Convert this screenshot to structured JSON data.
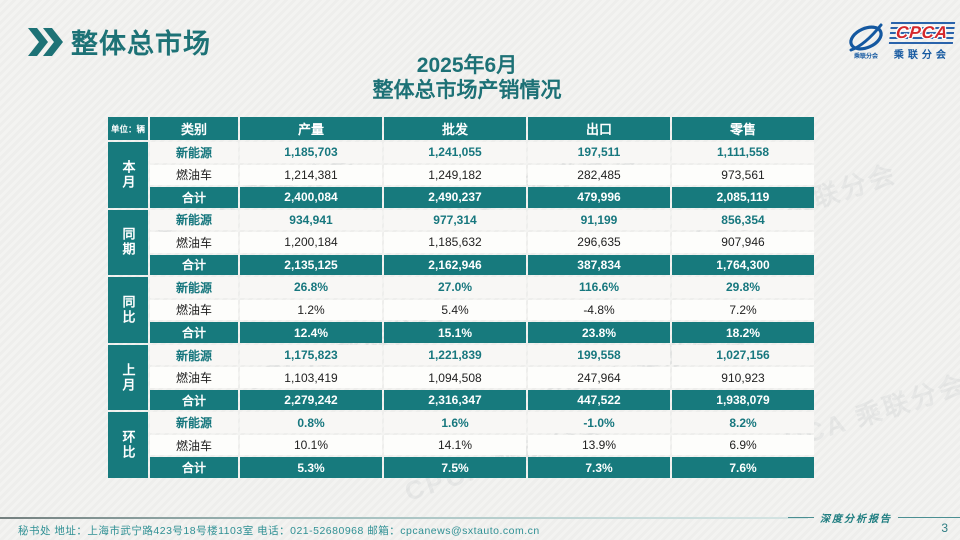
{
  "page": {
    "section_title": "整体总市场",
    "title_line1": "2025年6月",
    "title_line2": "整体总市场产销情况",
    "footer_text": "秘书处  地址：上海市武宁路423号18号楼1103室  电话：021-52680968   邮箱：cpcanews@sxtauto.com.cn",
    "report_badge": "深度分析报告",
    "page_number": "3",
    "watermark_text": "CPCA 乘联分会"
  },
  "logo": {
    "name": "CPCA",
    "subtitle": "乘联分会"
  },
  "colors": {
    "teal": "#177A7D",
    "accent_text": "#17777E",
    "title_teal": "#1D7176",
    "logo_blue": "#1458A0",
    "logo_red": "#D5282C"
  },
  "chart_data": {
    "type": "table",
    "title": "2025年6月 整体总市场产销情况",
    "unit_label": "单位：辆",
    "columns": [
      "类别",
      "产量",
      "批发",
      "出口",
      "零售"
    ],
    "row_groups": [
      {
        "label": "本月",
        "rows": [
          {
            "category": "新能源",
            "style": "accent",
            "values": [
              "1,185,703",
              "1,241,055",
              "197,511",
              "1,111,558"
            ]
          },
          {
            "category": "燃油车",
            "style": "plain",
            "values": [
              "1,214,381",
              "1,249,182",
              "282,485",
              "973,561"
            ]
          },
          {
            "category": "合计",
            "style": "total",
            "values": [
              "2,400,084",
              "2,490,237",
              "479,996",
              "2,085,119"
            ]
          }
        ]
      },
      {
        "label": "同期",
        "rows": [
          {
            "category": "新能源",
            "style": "accent",
            "values": [
              "934,941",
              "977,314",
              "91,199",
              "856,354"
            ]
          },
          {
            "category": "燃油车",
            "style": "plain",
            "values": [
              "1,200,184",
              "1,185,632",
              "296,635",
              "907,946"
            ]
          },
          {
            "category": "合计",
            "style": "total",
            "values": [
              "2,135,125",
              "2,162,946",
              "387,834",
              "1,764,300"
            ]
          }
        ]
      },
      {
        "label": "同比",
        "rows": [
          {
            "category": "新能源",
            "style": "accent",
            "values": [
              "26.8%",
              "27.0%",
              "116.6%",
              "29.8%"
            ]
          },
          {
            "category": "燃油车",
            "style": "plain",
            "values": [
              "1.2%",
              "5.4%",
              "-4.8%",
              "7.2%"
            ]
          },
          {
            "category": "合计",
            "style": "total",
            "values": [
              "12.4%",
              "15.1%",
              "23.8%",
              "18.2%"
            ]
          }
        ]
      },
      {
        "label": "上月",
        "rows": [
          {
            "category": "新能源",
            "style": "accent",
            "values": [
              "1,175,823",
              "1,221,839",
              "199,558",
              "1,027,156"
            ]
          },
          {
            "category": "燃油车",
            "style": "plain",
            "values": [
              "1,103,419",
              "1,094,508",
              "247,964",
              "910,923"
            ]
          },
          {
            "category": "合计",
            "style": "total",
            "values": [
              "2,279,242",
              "2,316,347",
              "447,522",
              "1,938,079"
            ]
          }
        ]
      },
      {
        "label": "环比",
        "rows": [
          {
            "category": "新能源",
            "style": "accent",
            "values": [
              "0.8%",
              "1.6%",
              "-1.0%",
              "8.2%"
            ]
          },
          {
            "category": "燃油车",
            "style": "plain",
            "values": [
              "10.1%",
              "14.1%",
              "13.9%",
              "6.9%"
            ]
          },
          {
            "category": "合计",
            "style": "total",
            "values": [
              "5.3%",
              "7.5%",
              "7.3%",
              "7.6%"
            ]
          }
        ]
      }
    ]
  }
}
